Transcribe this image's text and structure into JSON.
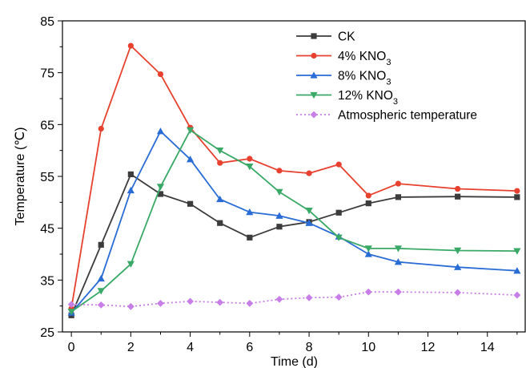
{
  "chart_data": {
    "type": "line",
    "xlabel": "Time (d)",
    "ylabel": "Temperature (℃)",
    "xlim": [
      -0.3,
      15.3
    ],
    "ylim": [
      25,
      85
    ],
    "xticks": [
      0,
      2,
      4,
      6,
      8,
      10,
      12,
      14
    ],
    "yticks": [
      25,
      35,
      45,
      55,
      65,
      75,
      85
    ],
    "grid": false,
    "legend_position": "top-right",
    "series": [
      {
        "name": "CK",
        "name_main": "CK",
        "name_sub": "",
        "color": "#3c3c3c",
        "marker": "square",
        "dash": false,
        "x": [
          0,
          1,
          2,
          3,
          4,
          5,
          6,
          7,
          8,
          9,
          10,
          11,
          13,
          15
        ],
        "y": [
          28.2,
          41.8,
          55.4,
          51.6,
          49.7,
          46.0,
          43.2,
          45.3,
          46.2,
          48.0,
          49.8,
          51.0,
          51.1,
          51.0
        ]
      },
      {
        "name": "4% KNO3",
        "name_main": "4% KNO",
        "name_sub": "3",
        "color": "#e8402f",
        "marker": "circle",
        "dash": false,
        "x": [
          0,
          1,
          2,
          3,
          4,
          5,
          6,
          7,
          8,
          9,
          10,
          11,
          13,
          15
        ],
        "y": [
          29.5,
          64.2,
          80.2,
          74.7,
          64.4,
          57.6,
          58.4,
          56.1,
          55.6,
          57.3,
          51.3,
          53.6,
          52.6,
          52.2
        ]
      },
      {
        "name": "8% KNO3",
        "name_main": "8% KNO",
        "name_sub": "3",
        "color": "#2a6cd6",
        "marker": "triangle-up",
        "dash": false,
        "x": [
          0,
          1,
          2,
          3,
          4,
          5,
          6,
          7,
          8,
          9,
          10,
          11,
          13,
          15
        ],
        "y": [
          28.7,
          35.3,
          52.3,
          63.7,
          58.3,
          50.6,
          48.1,
          47.4,
          46.0,
          43.4,
          40.0,
          38.5,
          37.5,
          36.8
        ]
      },
      {
        "name": "12% KNO3",
        "name_main": "12% KNO",
        "name_sub": "3",
        "color": "#3aa866",
        "marker": "triangle-down",
        "dash": false,
        "x": [
          0,
          1,
          2,
          3,
          4,
          5,
          6,
          7,
          8,
          9,
          10,
          11,
          13,
          15
        ],
        "y": [
          28.9,
          32.9,
          38.1,
          53.0,
          63.9,
          60.0,
          56.9,
          52.0,
          48.4,
          43.2,
          41.1,
          41.1,
          40.7,
          40.6
        ]
      },
      {
        "name": "Atmospheric temperature",
        "name_main": "Atmospheric temperature",
        "name_sub": "",
        "color": "#c77ee6",
        "marker": "diamond",
        "dash": true,
        "x": [
          0,
          1,
          2,
          3,
          4,
          5,
          6,
          7,
          8,
          9,
          10,
          11,
          13,
          15
        ],
        "y": [
          30.3,
          30.2,
          29.9,
          30.5,
          30.9,
          30.7,
          30.5,
          31.3,
          31.6,
          31.7,
          32.7,
          32.7,
          32.6,
          32.1
        ]
      }
    ]
  }
}
